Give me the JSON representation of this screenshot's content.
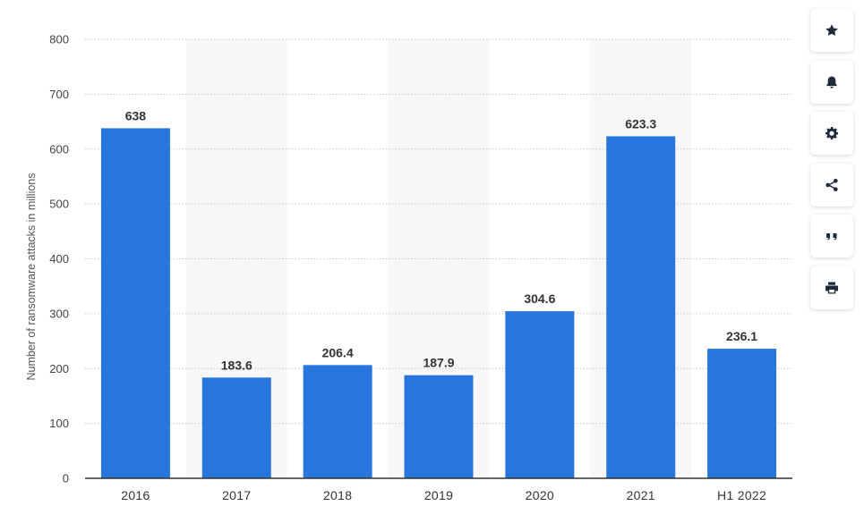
{
  "chart_data": {
    "type": "bar",
    "categories": [
      "2016",
      "2017",
      "2018",
      "2019",
      "2020",
      "2021",
      "H1 2022"
    ],
    "values": [
      638,
      183.6,
      206.4,
      187.9,
      304.6,
      623.3,
      236.1
    ],
    "value_labels": [
      "638",
      "183.6",
      "206.4",
      "187.9",
      "304.6",
      "623.3",
      "236.1"
    ],
    "ylabel": "Number of ransomware attacks in millions",
    "xlabel": "",
    "ylim": [
      0,
      800
    ],
    "yticks": [
      0,
      100,
      200,
      300,
      400,
      500,
      600,
      700,
      800
    ],
    "grid": true,
    "bar_color": "#2876dd",
    "alt_band_color": "#f7f7f7"
  },
  "toolbar": {
    "buttons": [
      {
        "name": "favorite-button",
        "icon": "star-icon"
      },
      {
        "name": "notification-button",
        "icon": "bell-icon"
      },
      {
        "name": "settings-button",
        "icon": "gear-icon"
      },
      {
        "name": "share-button",
        "icon": "share-icon"
      },
      {
        "name": "cite-button",
        "icon": "quote-icon"
      },
      {
        "name": "print-button",
        "icon": "print-icon"
      }
    ]
  }
}
